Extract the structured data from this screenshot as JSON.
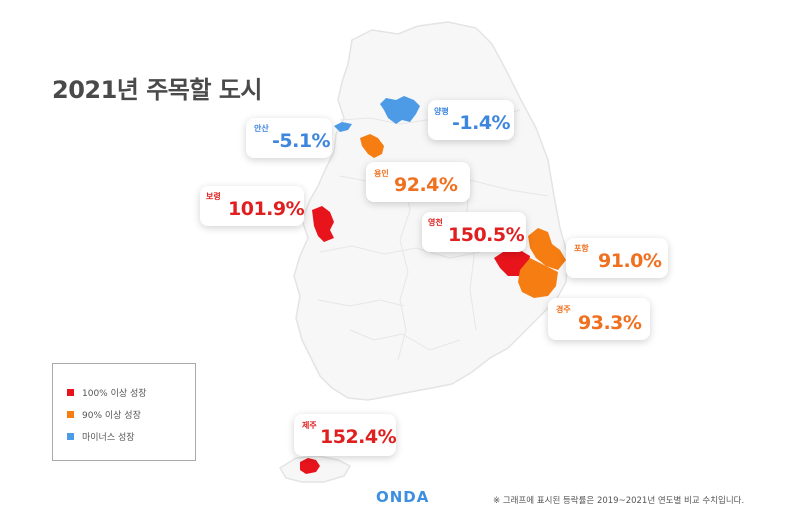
{
  "title": "2021년 주목할 도시",
  "colors": {
    "red": "#e8141c",
    "orange": "#f57d12",
    "blue": "#4d9be6",
    "red_text": "#e02020",
    "orange_text": "#f07020",
    "blue_text": "#3d86de"
  },
  "regions": [
    {
      "city": "양평",
      "value": "-1.4%",
      "category": "minus"
    },
    {
      "city": "안산",
      "value": "-5.1%",
      "category": "minus"
    },
    {
      "city": "용인",
      "value": "92.4%",
      "category": "90"
    },
    {
      "city": "보령",
      "value": "101.9%",
      "category": "100"
    },
    {
      "city": "영천",
      "value": "150.5%",
      "category": "100"
    },
    {
      "city": "포항",
      "value": "91.0%",
      "category": "90"
    },
    {
      "city": "경주",
      "value": "93.3%",
      "category": "90"
    },
    {
      "city": "제주",
      "value": "152.4%",
      "category": "100"
    }
  ],
  "legend": [
    {
      "label": "100% 이상 성장",
      "color": "#e8141c"
    },
    {
      "label": "90% 이상 성장",
      "color": "#f57d12"
    },
    {
      "label": "마이너스 성장",
      "color": "#4d9be6"
    }
  ],
  "logo": "ONDA",
  "footnote": "※ 그래프에 표시된 등락률은 2019~2021년 연도별 비교 수치입니다."
}
